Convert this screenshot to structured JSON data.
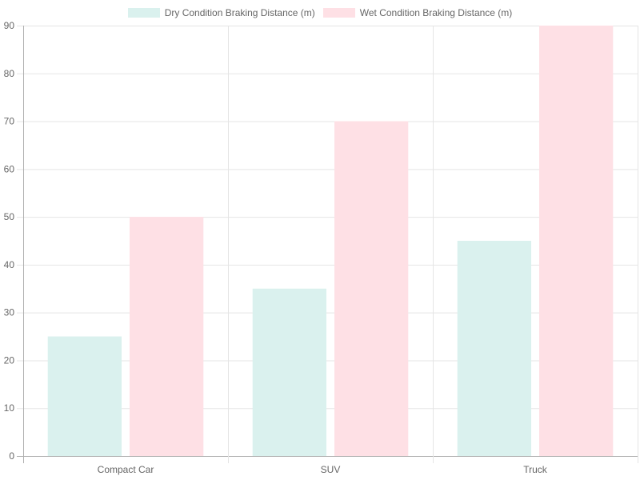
{
  "chart_data": {
    "type": "bar",
    "categories": [
      "Compact Car",
      "SUV",
      "Truck"
    ],
    "series": [
      {
        "name": "Dry Condition Braking Distance (m)",
        "values": [
          25,
          35,
          45
        ],
        "color": "#daf1ee"
      },
      {
        "name": "Wet Condition Braking Distance (m)",
        "values": [
          50,
          70,
          90
        ],
        "color": "#fee0e5"
      }
    ],
    "ylim": [
      0,
      90
    ],
    "yticks": [
      0,
      10,
      20,
      30,
      40,
      50,
      60,
      70,
      80,
      90
    ],
    "grid": true,
    "legend_position": "top"
  }
}
